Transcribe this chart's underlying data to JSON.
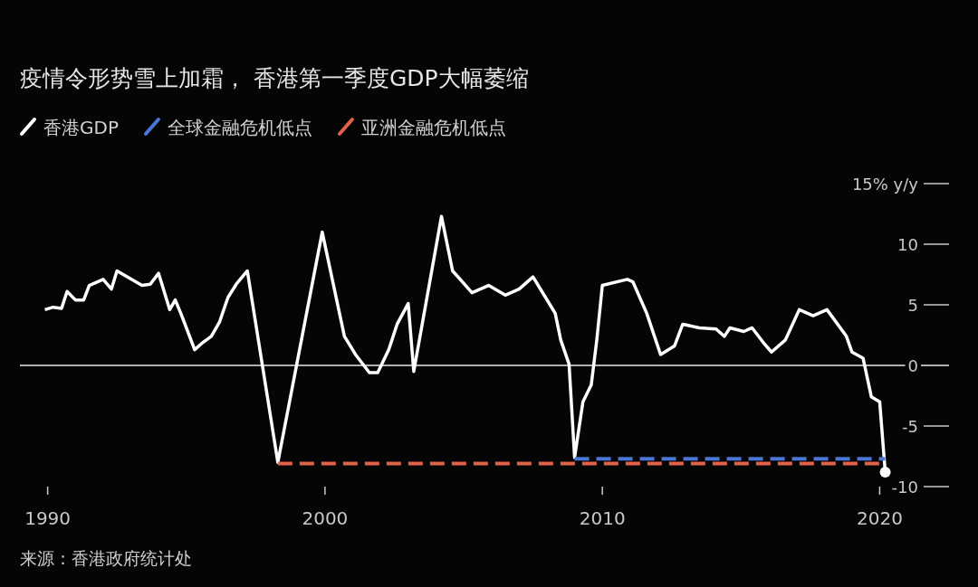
{
  "chart_data": {
    "type": "line",
    "title": "疫情令形势雪上加霜， 香港第一季度GDP大幅萎缩",
    "annotations": [
      "来源：香港政府统计处"
    ],
    "xlim": [
      1989,
      2022.5
    ],
    "xticks": [
      1990,
      2000,
      2010,
      2020
    ],
    "ylim": [
      -10,
      15
    ],
    "yticks": [
      -10,
      -5,
      0,
      5,
      10,
      {
        "value": 15,
        "label": "15% y/y"
      }
    ],
    "legend": "top left",
    "ref_lines": [
      {
        "axis": "y",
        "value": 0,
        "color": "#b0b0b0"
      }
    ],
    "series": [
      {
        "name": "香港GDP",
        "color": "#ffffff",
        "x": [
          1989.9,
          1990.2,
          1990.5,
          1990.7,
          1991.0,
          1991.3,
          1991.5,
          1991.8,
          1992.0,
          1992.3,
          1992.5,
          1993.4,
          1993.7,
          1994.0,
          1994.4,
          1994.6,
          1994.8,
          1995.0,
          1995.3,
          1995.6,
          1995.9,
          1996.2,
          1996.5,
          1996.8,
          1997.2,
          1998.3,
          1999.9,
          2000.7,
          2001.1,
          2001.6,
          2001.9,
          2002.3,
          2002.6,
          2003.0,
          2003.2,
          2004.2,
          2004.6,
          2005.3,
          2005.9,
          2006.5,
          2007.0,
          2007.5,
          2007.9,
          2008.3,
          2008.5,
          2008.8,
          2009.0,
          2009.3,
          2009.6,
          2009.8,
          2010.0,
          2010.9,
          2011.1,
          2011.6,
          2012.1,
          2012.6,
          2012.9,
          2013.5,
          2014.1,
          2014.4,
          2014.6,
          2015.1,
          2015.4,
          2015.8,
          2016.1,
          2016.6,
          2017.1,
          2017.6,
          2018.1,
          2018.8,
          2019.0,
          2019.4,
          2019.7,
          2020.0,
          2020.2
        ],
        "values": [
          4.6,
          4.8,
          4.7,
          6.1,
          5.4,
          5.4,
          6.6,
          6.9,
          7.1,
          6.3,
          7.8,
          6.6,
          6.7,
          7.6,
          4.6,
          5.4,
          4.3,
          3.1,
          1.3,
          1.9,
          2.4,
          3.6,
          5.6,
          6.7,
          7.8,
          -8.0,
          11.0,
          2.4,
          0.9,
          -0.6,
          -0.6,
          1.3,
          3.4,
          5.1,
          -0.5,
          12.3,
          7.8,
          6.0,
          6.6,
          5.8,
          6.3,
          7.3,
          5.8,
          4.3,
          2.1,
          0.1,
          -7.6,
          -3.0,
          -1.6,
          2.1,
          6.6,
          7.1,
          6.9,
          4.3,
          0.9,
          1.6,
          3.4,
          3.1,
          3.0,
          2.4,
          3.1,
          2.8,
          3.1,
          1.9,
          1.1,
          2.1,
          4.6,
          4.1,
          4.6,
          2.4,
          1.1,
          0.6,
          -2.6,
          -3.0,
          -8.8
        ]
      },
      {
        "name": "全球金融危机低点",
        "color": "#4a78d8",
        "line_style": "dashed",
        "x": [
          2009.0,
          2020.2
        ],
        "values": [
          -7.7,
          -7.7
        ]
      },
      {
        "name": "亚洲金融危机低点",
        "color": "#e0624a",
        "line_style": "dashed",
        "x": [
          1998.3,
          2020.2
        ],
        "values": [
          -8.1,
          -8.1
        ]
      },
      {
        "type": "scatter",
        "color": "#ffffff",
        "x": [
          2020.2
        ],
        "values": [
          -8.8
        ]
      }
    ]
  }
}
